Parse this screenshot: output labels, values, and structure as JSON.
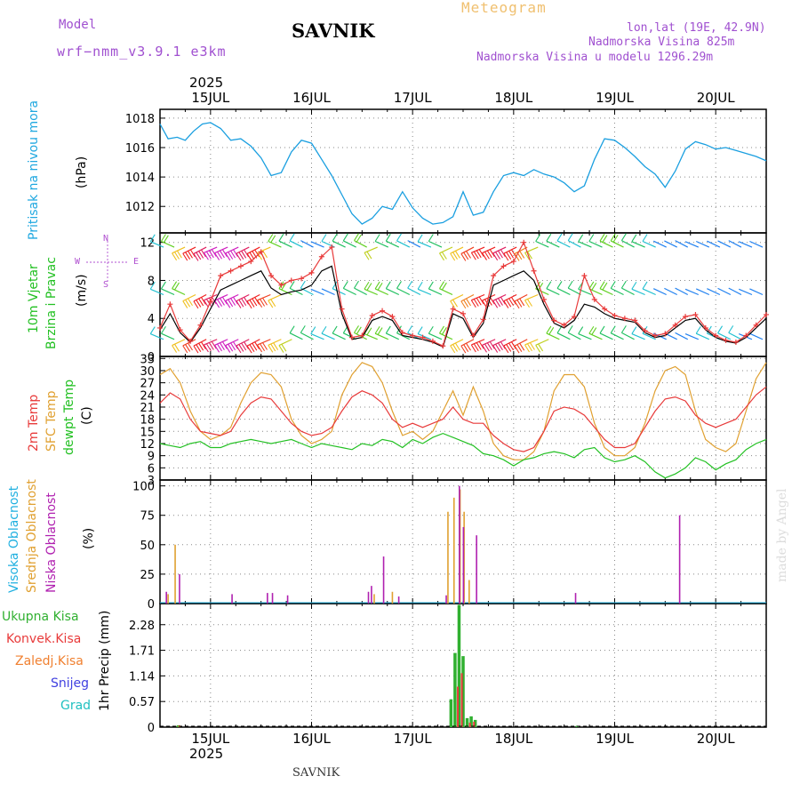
{
  "header": {
    "model_label": "Model",
    "model_name": "wrf−nmm_v3.9.1 e3km",
    "station": "SAVNIK",
    "meteogram": "Meteogram",
    "lonlat": "lon,lat (19E, 42.9N)",
    "altitude": "Nadmorska Visina 825m",
    "model_altitude": "Nadmorska Visina u modelu 1296.29m",
    "year_top": "2025",
    "year_bottom": "2025",
    "footer_station": "SAVNIK",
    "watermark": "made by Angel"
  },
  "colors": {
    "pressure": "#1a9fe0",
    "temp2m": "#e83a3a",
    "sfc": "#e0a030",
    "dew": "#22c022",
    "high": "#20b0e0",
    "mid": "#e0a030",
    "low": "#b020b0",
    "precip_total": "#30b030",
    "precip_conv": "#e83a3a",
    "precip_frz": "#f08030",
    "snow": "#4040e0",
    "hail": "#20c0c0",
    "purple": "#a050d0"
  },
  "chart_data": [
    {
      "type": "line",
      "title": "Pritisak na nivou mora",
      "ylabel": "(hPa)",
      "ylim": [
        1010.2,
        1018.6
      ],
      "yticks": [
        "1012",
        "1014",
        "1016",
        "1018"
      ],
      "xlabels": [
        "15JUL",
        "16JUL",
        "17JUL",
        "18JUL",
        "19JUL",
        "20JUL"
      ],
      "xrange_days": [
        14.5,
        20.5
      ],
      "x": [
        14.5,
        14.58,
        14.67,
        14.75,
        14.83,
        14.92,
        15,
        15.1,
        15.2,
        15.3,
        15.4,
        15.5,
        15.6,
        15.7,
        15.8,
        15.9,
        16,
        16.1,
        16.2,
        16.3,
        16.4,
        16.5,
        16.6,
        16.7,
        16.8,
        16.9,
        17,
        17.1,
        17.2,
        17.3,
        17.4,
        17.5,
        17.6,
        17.7,
        17.8,
        17.9,
        18,
        18.1,
        18.2,
        18.3,
        18.4,
        18.5,
        18.6,
        18.7,
        18.8,
        18.9,
        19,
        19.1,
        19.2,
        19.3,
        19.4,
        19.5,
        19.6,
        19.7,
        19.8,
        19.9,
        20,
        20.1,
        20.2,
        20.3,
        20.4,
        20.5
      ],
      "values": [
        1017.6,
        1016.6,
        1016.7,
        1016.5,
        1017.1,
        1017.6,
        1017.7,
        1017.3,
        1016.5,
        1016.6,
        1016.1,
        1015.3,
        1014.1,
        1014.3,
        1015.7,
        1016.5,
        1016.3,
        1015.2,
        1014.1,
        1012.8,
        1011.5,
        1010.8,
        1011.2,
        1012.0,
        1011.8,
        1013.0,
        1011.9,
        1011.2,
        1010.8,
        1010.9,
        1011.3,
        1013.0,
        1011.4,
        1011.6,
        1013.0,
        1014.1,
        1014.3,
        1014.1,
        1014.5,
        1014.2,
        1014.0,
        1013.6,
        1013.0,
        1013.4,
        1015.2,
        1016.6,
        1016.5,
        1016.0,
        1015.4,
        1014.7,
        1014.2,
        1013.3,
        1014.4,
        1015.9,
        1016.4,
        1016.2,
        1015.9,
        1016.0,
        1015.8,
        1015.6,
        1015.4,
        1015.1
      ]
    },
    {
      "type": "line",
      "title": "10m Vjetar Brzina i Pravac",
      "ylabel": "(m/s)",
      "ylim": [
        0,
        13
      ],
      "yticks": [
        "0",
        "4",
        "8",
        "12"
      ],
      "compass": {
        "n": "N",
        "w": "W",
        "e": "E",
        "s": "S"
      },
      "x": [
        14.5,
        14.6,
        14.7,
        14.8,
        14.9,
        15,
        15.1,
        15.2,
        15.3,
        15.4,
        15.5,
        15.6,
        15.7,
        15.8,
        15.9,
        16,
        16.1,
        16.2,
        16.3,
        16.4,
        16.5,
        16.6,
        16.7,
        16.8,
        16.9,
        17,
        17.1,
        17.2,
        17.3,
        17.4,
        17.5,
        17.6,
        17.7,
        17.8,
        17.9,
        18,
        18.1,
        18.2,
        18.3,
        18.4,
        18.5,
        18.6,
        18.7,
        18.8,
        18.9,
        19,
        19.1,
        19.2,
        19.3,
        19.4,
        19.5,
        19.6,
        19.7,
        19.8,
        19.9,
        20,
        20.1,
        20.2,
        20.3,
        20.4,
        20.5
      ],
      "speed": [
        2.8,
        4.5,
        2.5,
        1.5,
        3.0,
        5.0,
        7.0,
        7.5,
        8.0,
        8.5,
        9.0,
        7.2,
        6.5,
        6.8,
        7.0,
        7.5,
        9.0,
        9.5,
        4.5,
        1.8,
        2.0,
        3.8,
        4.2,
        3.8,
        2.2,
        2.0,
        1.8,
        1.5,
        1.0,
        4.5,
        4.0,
        2.0,
        3.5,
        7.5,
        8.0,
        8.5,
        9.0,
        8.0,
        5.5,
        3.5,
        3.0,
        3.8,
        5.5,
        5.2,
        4.5,
        4.0,
        3.8,
        3.6,
        2.5,
        2.0,
        2.2,
        3.0,
        3.8,
        4.0,
        2.8,
        2.0,
        1.6,
        1.4,
        2.0,
        3.0,
        4.0
      ],
      "gust": [
        3.0,
        5.5,
        2.8,
        1.6,
        3.3,
        5.8,
        8.5,
        9.0,
        9.5,
        10.0,
        11.0,
        8.5,
        7.5,
        8.0,
        8.2,
        8.8,
        10.5,
        11.5,
        5.0,
        2.0,
        2.2,
        4.3,
        4.8,
        4.2,
        2.5,
        2.2,
        2.0,
        1.6,
        1.1,
        5.0,
        4.5,
        2.2,
        3.9,
        8.5,
        9.5,
        10.0,
        12.0,
        9.0,
        6.0,
        3.8,
        3.3,
        4.2,
        8.5,
        6.0,
        5.0,
        4.3,
        4.0,
        3.8,
        2.7,
        2.2,
        2.4,
        3.3,
        4.2,
        4.4,
        3.0,
        2.2,
        1.7,
        1.5,
        2.2,
        3.3,
        4.4
      ],
      "barb_rows": [
        {
          "level": 11.5,
          "speeds": [
            3,
            6,
            9,
            12,
            14,
            16,
            16,
            15,
            14,
            12,
            9,
            6,
            4,
            3,
            2,
            2,
            3,
            4,
            5,
            6,
            7,
            5,
            4,
            3,
            2,
            3,
            5,
            7,
            9,
            11,
            12,
            13,
            14,
            13,
            10,
            7,
            5,
            4,
            3,
            3,
            4,
            5,
            6,
            6,
            5,
            4,
            3,
            2,
            2,
            2,
            2,
            2,
            2,
            2,
            2,
            2,
            2
          ]
        },
        {
          "level": 6.5,
          "speeds": [
            3,
            4,
            6,
            9,
            12,
            14,
            15,
            15,
            14,
            13,
            11,
            8,
            6,
            4,
            3,
            2,
            2,
            3,
            4,
            5,
            6,
            6,
            5,
            4,
            3,
            3,
            4,
            6,
            8,
            10,
            12,
            13,
            14,
            13,
            11,
            8,
            6,
            5,
            4,
            4,
            5,
            6,
            6,
            5,
            4,
            3,
            3,
            2,
            2,
            2,
            2,
            2,
            2,
            2,
            2,
            2,
            2
          ]
        },
        {
          "level": 1.8,
          "speeds": [
            3,
            5,
            8,
            11,
            13,
            14,
            15,
            15,
            14,
            13,
            11,
            9,
            7,
            5,
            4,
            3,
            3,
            4,
            5,
            6,
            6,
            6,
            5,
            4,
            3,
            3,
            4,
            6,
            9,
            11,
            13,
            14,
            14,
            13,
            11,
            9,
            7,
            6,
            5,
            5,
            5,
            6,
            5,
            4,
            4,
            3,
            3,
            2,
            2,
            2,
            2,
            3,
            3,
            3,
            3,
            2,
            2
          ]
        }
      ]
    },
    {
      "type": "line",
      "title": "2m Temp / SFC Temp / dewpt Temp",
      "ylabel": "(C)",
      "ylim": [
        3,
        33.5
      ],
      "yticks": [
        "3",
        "6",
        "9",
        "12",
        "15",
        "18",
        "21",
        "24",
        "27",
        "30",
        "33"
      ],
      "x": [
        14.5,
        14.6,
        14.7,
        14.8,
        14.9,
        15,
        15.1,
        15.2,
        15.3,
        15.4,
        15.5,
        15.6,
        15.7,
        15.8,
        15.9,
        16,
        16.1,
        16.2,
        16.3,
        16.4,
        16.5,
        16.6,
        16.7,
        16.8,
        16.9,
        17,
        17.1,
        17.2,
        17.3,
        17.4,
        17.5,
        17.6,
        17.7,
        17.8,
        17.9,
        18,
        18.1,
        18.2,
        18.3,
        18.4,
        18.5,
        18.6,
        18.7,
        18.8,
        18.9,
        19,
        19.1,
        19.2,
        19.3,
        19.4,
        19.5,
        19.6,
        19.7,
        19.8,
        19.9,
        20,
        20.1,
        20.2,
        20.3,
        20.4,
        20.5
      ],
      "series": [
        {
          "name": "2m Temp",
          "values": [
            22,
            24.5,
            23,
            18,
            15,
            14.5,
            14,
            15,
            19,
            22,
            23.5,
            23,
            20,
            17,
            15,
            14,
            14.5,
            16,
            20,
            23.5,
            25,
            24,
            22,
            18,
            16,
            17,
            16,
            17,
            18,
            21,
            18,
            17,
            17,
            14,
            12,
            10.5,
            10,
            11,
            15,
            20,
            21,
            20.5,
            19,
            16,
            13,
            11,
            11,
            12,
            16,
            20,
            23,
            23.5,
            22.5,
            19,
            17,
            16,
            17,
            18,
            21,
            24,
            26
          ]
        },
        {
          "name": "SFC Temp",
          "values": [
            29,
            30.5,
            27,
            20,
            15,
            13,
            14,
            16,
            22,
            27,
            29.5,
            29,
            26,
            18,
            14,
            12,
            13,
            15,
            24,
            29,
            32,
            31,
            27,
            20,
            14,
            15,
            13,
            15,
            20,
            25,
            19,
            26,
            20,
            12,
            9,
            8,
            8,
            10,
            15,
            25,
            29,
            29,
            26,
            17,
            11,
            9,
            9,
            11,
            17,
            25,
            30,
            31,
            29,
            20,
            13,
            11,
            10,
            12,
            20,
            28,
            32
          ]
        },
        {
          "name": "dewpt Temp",
          "values": [
            12,
            11.5,
            11,
            12,
            12.5,
            11,
            11,
            12,
            12.5,
            13,
            12.5,
            12,
            12.5,
            13,
            12,
            11,
            12,
            11.5,
            11,
            10.5,
            12,
            11.5,
            13,
            12.5,
            11,
            13,
            12,
            13.5,
            14.5,
            13.5,
            12.5,
            11.5,
            9.5,
            9,
            8,
            6.5,
            8,
            8.5,
            9.5,
            10,
            9.5,
            8.5,
            10.5,
            11,
            8.5,
            7.5,
            8,
            9,
            7.5,
            5,
            3.5,
            4.5,
            6,
            8.5,
            7.5,
            5.5,
            7,
            8,
            10.5,
            12,
            13
          ]
        }
      ]
    },
    {
      "type": "bar",
      "title": "Visoka Oblacnost / Srednja Oblacnost / Niska Oblacnost",
      "ylabel": "(%)",
      "ylim": [
        0,
        105
      ],
      "yticks": [
        "0",
        "25",
        "50",
        "75",
        "100"
      ],
      "series": [
        {
          "name": "Visoka",
          "points": [
            [
              17.48,
              25
            ]
          ]
        },
        {
          "name": "Srednja",
          "points": [
            [
              14.58,
              8
            ],
            [
              14.65,
              50
            ],
            [
              16.62,
              8
            ],
            [
              16.8,
              10
            ],
            [
              17.35,
              78
            ],
            [
              17.41,
              90
            ],
            [
              17.47,
              97
            ],
            [
              17.51,
              78
            ],
            [
              17.56,
              20
            ]
          ]
        },
        {
          "name": "Niska",
          "points": [
            [
              14.55,
              10
            ],
            [
              14.68,
              25
            ],
            [
              15.2,
              8
            ],
            [
              15.55,
              9
            ],
            [
              15.6,
              9
            ],
            [
              15.75,
              7
            ],
            [
              16.55,
              10
            ],
            [
              16.58,
              15
            ],
            [
              16.7,
              40
            ],
            [
              16.85,
              6
            ],
            [
              17.32,
              7
            ],
            [
              17.45,
              100
            ],
            [
              17.49,
              65
            ],
            [
              17.62,
              58
            ],
            [
              18.6,
              9
            ],
            [
              19.63,
              75
            ]
          ]
        }
      ]
    },
    {
      "type": "bar",
      "title": "1hr Precip",
      "ylabel": "1hr Precip (mm)",
      "ylim": [
        0,
        2.75
      ],
      "yticks": [
        "0",
        "0.57",
        "1.14",
        "1.71",
        "2.28"
      ],
      "series": [
        {
          "name": "Ukupna Kisa",
          "points": [
            [
              14.68,
              0.04
            ],
            [
              17.38,
              0.62
            ],
            [
              17.42,
              1.65
            ],
            [
              17.46,
              2.72
            ],
            [
              17.5,
              1.58
            ],
            [
              17.54,
              0.2
            ],
            [
              17.58,
              0.24
            ],
            [
              17.62,
              0.16
            ],
            [
              18.63,
              0.03
            ]
          ]
        },
        {
          "name": "Konvek.Kisa",
          "points": [
            [
              17.43,
              0.9
            ],
            [
              17.47,
              1.2
            ],
            [
              17.55,
              0.1
            ],
            [
              17.59,
              0.12
            ]
          ]
        },
        {
          "name": "Zaledj.Kisa",
          "points": [
            [
              14.69,
              0.04
            ]
          ]
        }
      ]
    }
  ],
  "legends": {
    "pressure": "Pritisak na nivou mora",
    "wind1": "10m Vjetar",
    "wind2": "Brzina i Pravac",
    "t2m": "2m Temp",
    "sfc": "SFC Temp",
    "dew": "dewpt Temp",
    "high": "Visoka Oblacnost",
    "mid": "Srednja Oblacnost",
    "low": "Niska Oblacnost",
    "rain": "Ukupna Kisa",
    "conv": "Konvek.Kisa",
    "frz": "Zaledj.Kisa",
    "snow": "Snijeg",
    "hail": "Grad"
  }
}
